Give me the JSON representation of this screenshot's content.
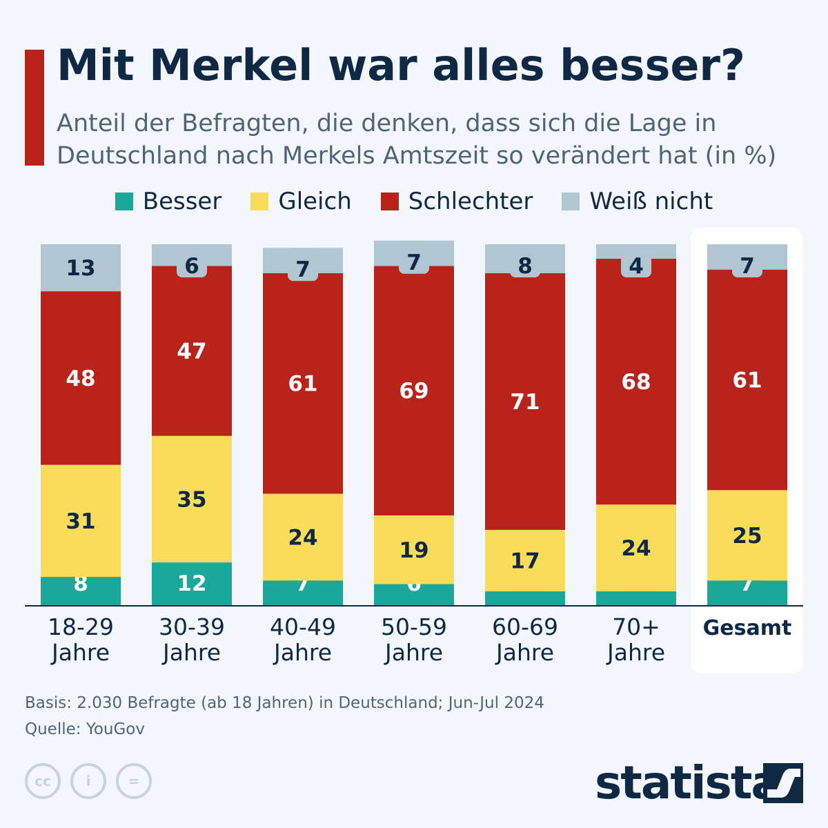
{
  "title": "Mit Merkel war alles besser?",
  "subtitle": "Anteil der Befragten, die denken, dass sich die Lage in Deutschland nach Merkels Amtszeit so verändert hat (in %)",
  "footer": {
    "basis": "Basis: 2.030 Befragte (ab 18 Jahren) in Deutschland; Jun-Jul 2024",
    "source": "Quelle: YouGov"
  },
  "brand": "statista",
  "colors": {
    "Besser": "#1ba89a",
    "Gleich": "#f9dd5a",
    "Schlechter": "#b8241c",
    "Weiß nicht": "#b1c6d0"
  },
  "chart_data": {
    "type": "bar",
    "stacked": true,
    "title": "Mit Merkel war alles besser?",
    "categories": [
      [
        "18-29",
        "Jahre"
      ],
      [
        "30-39",
        "Jahre"
      ],
      [
        "40-49",
        "Jahre"
      ],
      [
        "50-59",
        "Jahre"
      ],
      [
        "60-69",
        "Jahre"
      ],
      [
        "70+",
        "Jahre"
      ],
      [
        "Gesamt",
        ""
      ]
    ],
    "series": [
      {
        "name": "Besser",
        "values": [
          8,
          12,
          7,
          6,
          4,
          4,
          7
        ]
      },
      {
        "name": "Gleich",
        "values": [
          31,
          35,
          24,
          19,
          17,
          24,
          25
        ]
      },
      {
        "name": "Schlechter",
        "values": [
          48,
          47,
          61,
          69,
          71,
          68,
          61
        ]
      },
      {
        "name": "Weiß nicht",
        "values": [
          13,
          6,
          7,
          7,
          8,
          4,
          7
        ]
      }
    ],
    "ylim": [
      0,
      101
    ],
    "legend": "top",
    "grid": false,
    "highlight": "Gesamt"
  }
}
